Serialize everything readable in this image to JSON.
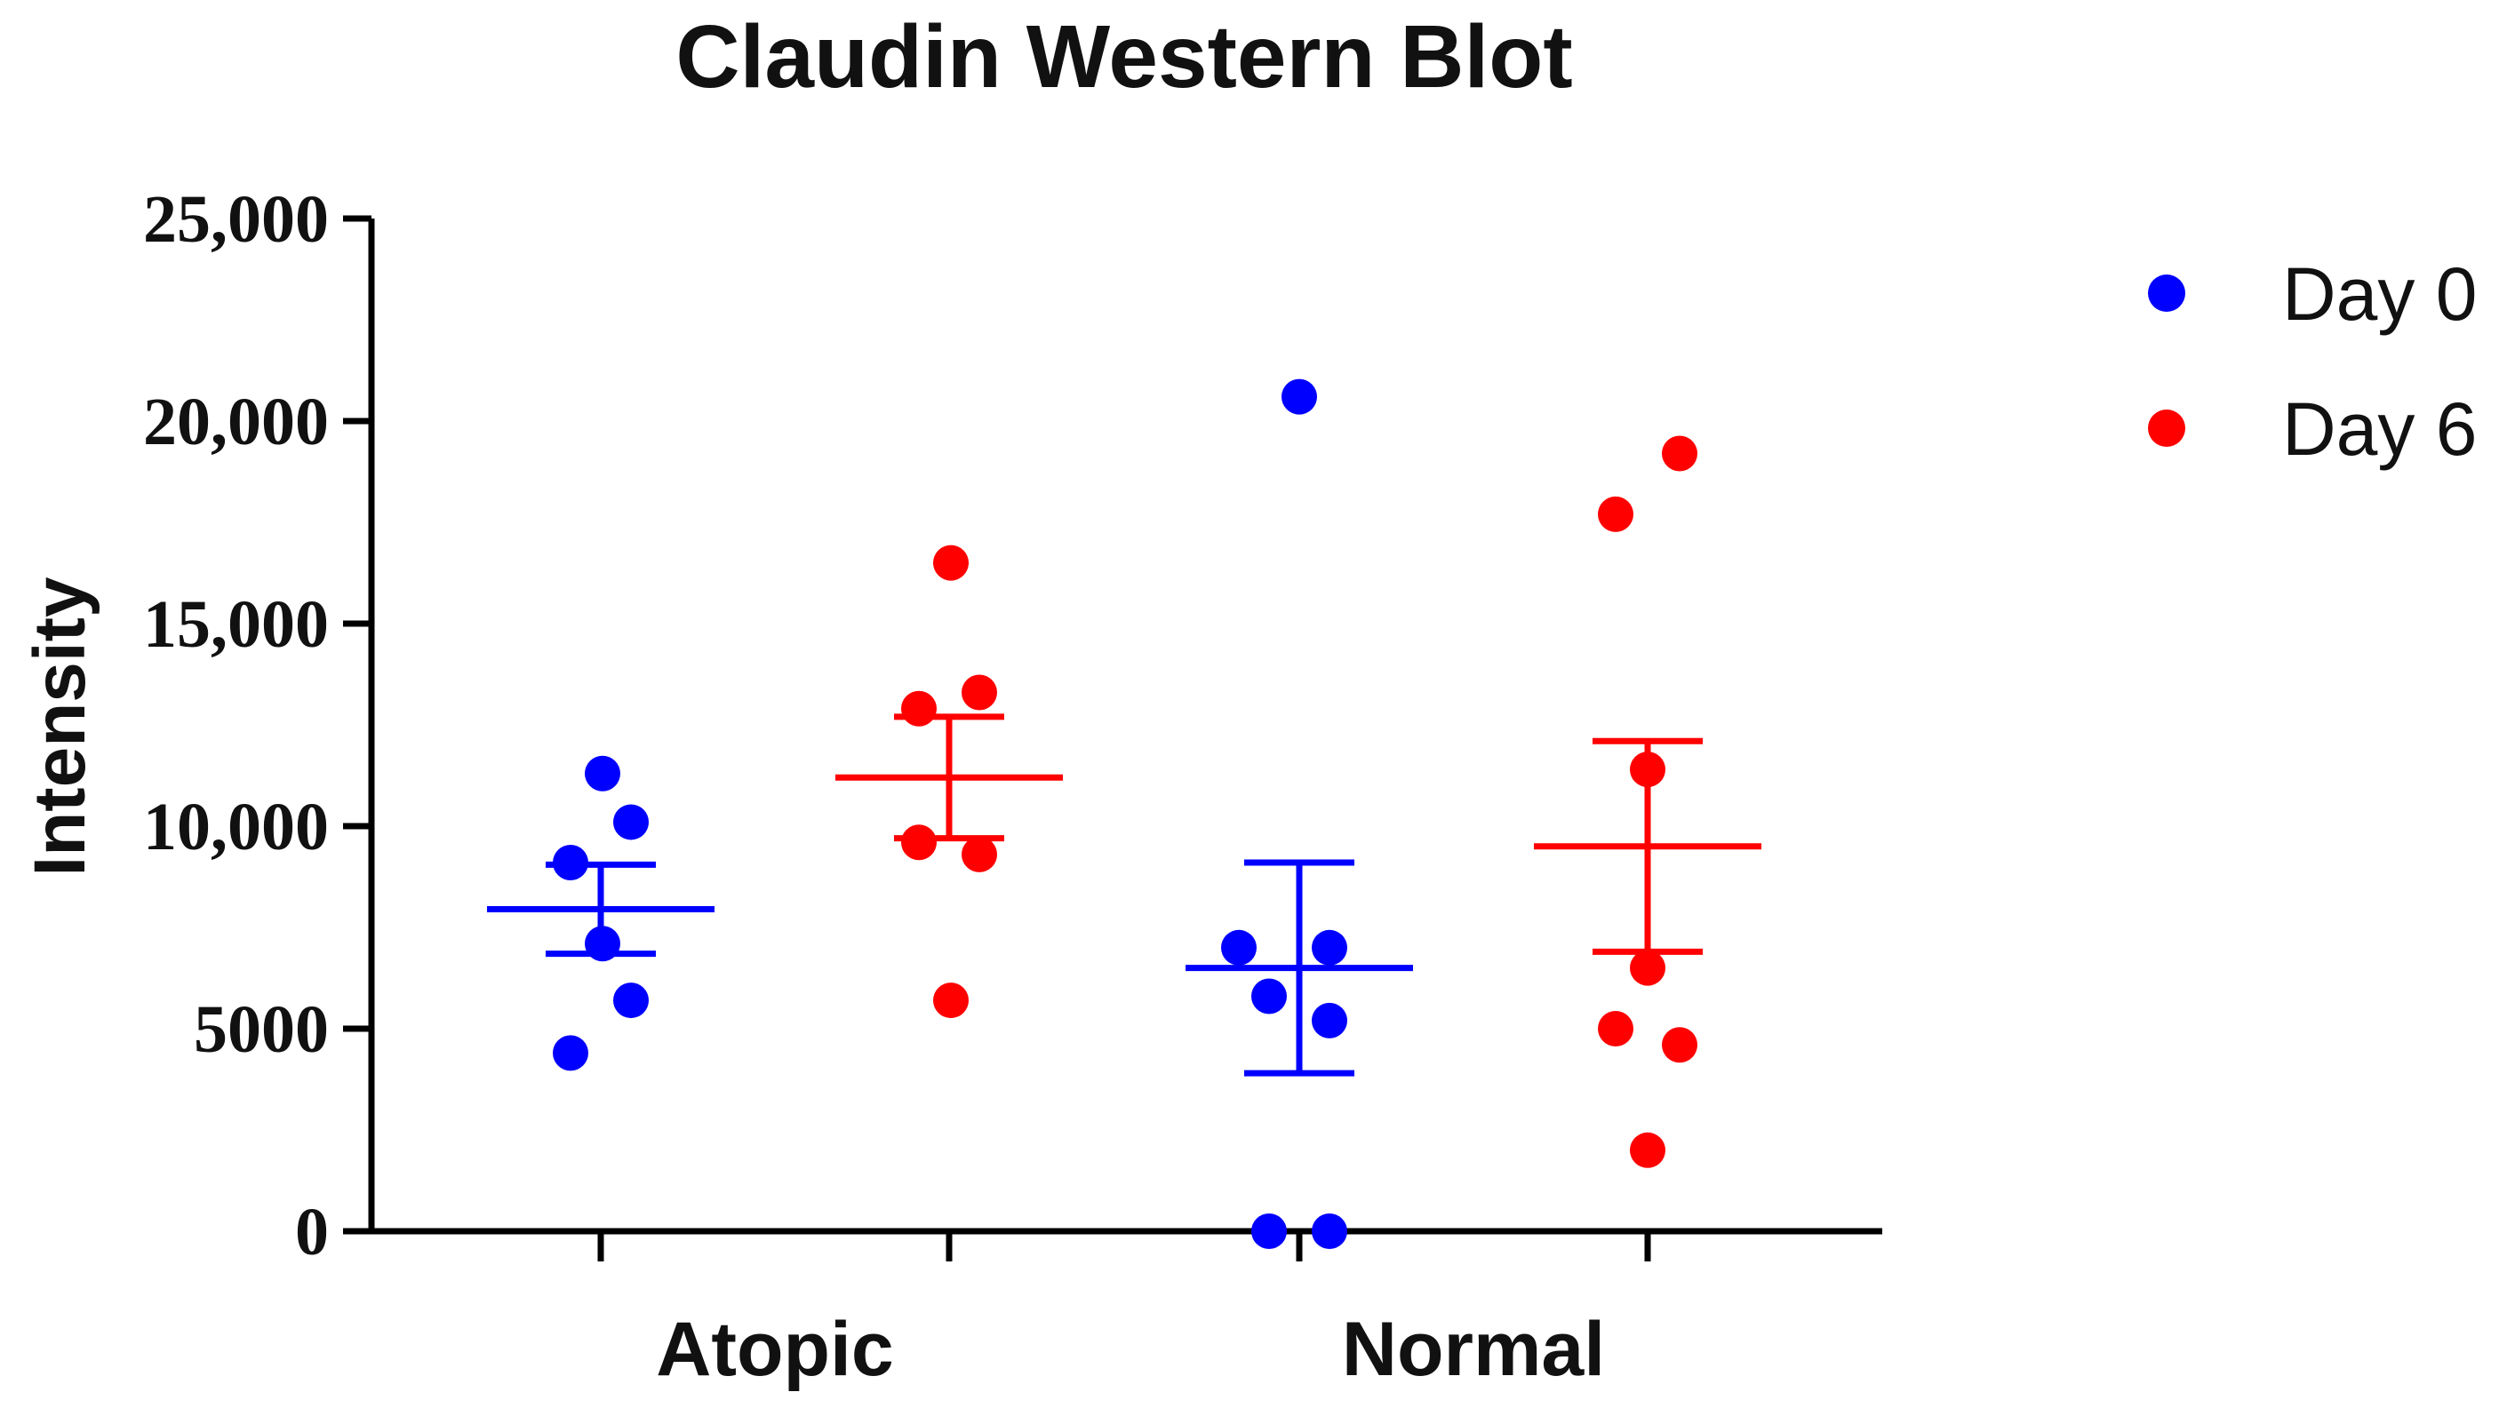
{
  "chart_data": {
    "type": "scatter",
    "title": "Claudin Western Blot",
    "ylabel": "Intensity",
    "xlabel": "",
    "ylim": [
      0,
      25000
    ],
    "yticks": [
      0,
      5000,
      10000,
      15000,
      20000,
      25000
    ],
    "ytick_labels": [
      "0",
      "5000",
      "10,000",
      "15,000",
      "20,000",
      "25,000"
    ],
    "categories": [
      "Atopic",
      "Normal"
    ],
    "legend_position": "top-right",
    "grid": false,
    "series": [
      {
        "name": "Day 0",
        "color": "#0000ff",
        "groups": [
          {
            "category": "Atopic",
            "values": [
              11300,
              10100,
              9100,
              7100,
              5700,
              4400
            ],
            "mean": 7950,
            "error_low": 6850,
            "error_high": 9050
          },
          {
            "category": "Normal",
            "values": [
              20600,
              7000,
              7000,
              5800,
              5200,
              0,
              0
            ],
            "mean": 6500,
            "error_low": 3900,
            "error_high": 9100
          }
        ]
      },
      {
        "name": "Day 6",
        "color": "#ff0000",
        "groups": [
          {
            "category": "Atopic",
            "values": [
              16500,
              13300,
              12900,
              9600,
              9300,
              5700
            ],
            "mean": 11200,
            "error_low": 9700,
            "error_high": 12700
          },
          {
            "category": "Normal",
            "values": [
              19200,
              17700,
              11400,
              6500,
              5000,
              4600,
              2000
            ],
            "mean": 9500,
            "error_low": 6900,
            "error_high": 12100
          }
        ]
      }
    ]
  }
}
